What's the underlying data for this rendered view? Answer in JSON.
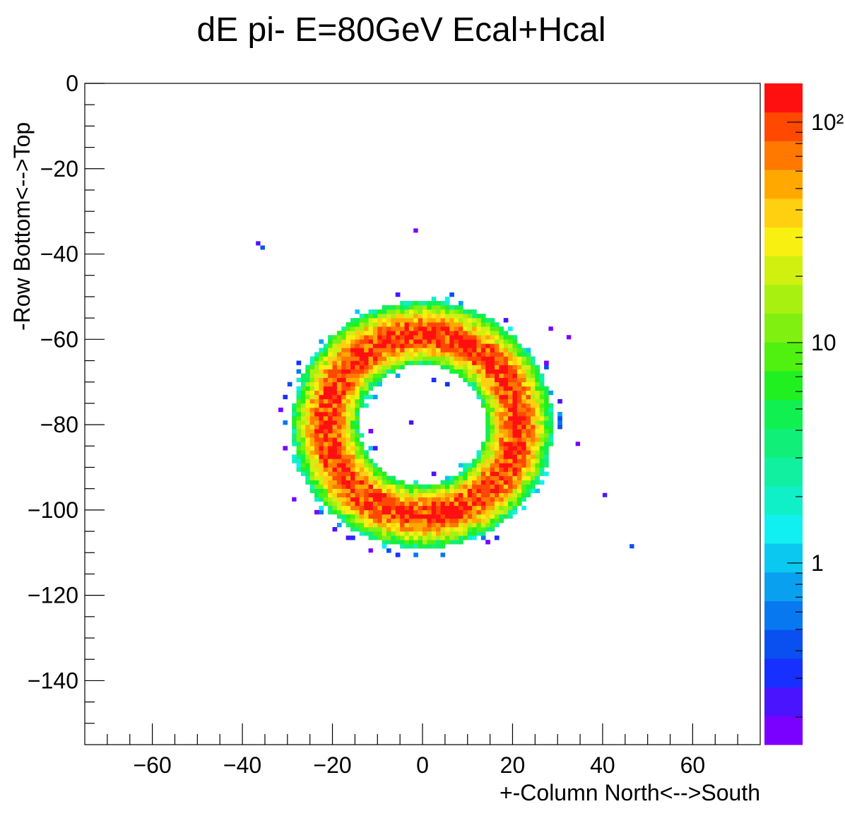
{
  "chart_data": {
    "type": "heatmap",
    "title": "dE pi- E=80GeV Ecal+Hcal",
    "xlabel": "+-Column North<-->South",
    "ylabel": "-Row Bottom<-->Top",
    "xlim": [
      -75,
      75
    ],
    "ylim": [
      -155,
      0
    ],
    "x_ticks": [
      -60,
      -40,
      -20,
      0,
      20,
      40,
      60
    ],
    "y_ticks": [
      0,
      -20,
      -40,
      -60,
      -80,
      -100,
      -120,
      -140
    ],
    "x_tick_labels": [
      "−60",
      "−40",
      "−20",
      "0",
      "20",
      "40",
      "60"
    ],
    "y_tick_labels": [
      "0",
      "−20",
      "−40",
      "−60",
      "−80",
      "−100",
      "−120",
      "−140"
    ],
    "colorbar": {
      "scale": "log",
      "min": 0.15,
      "max": 150,
      "tick_labels": [
        "1",
        "10",
        "10²"
      ],
      "tick_values": [
        1,
        10,
        100
      ],
      "palette": [
        "#7a00ff",
        "#4a14ff",
        "#1830ff",
        "#0a50f0",
        "#0878f0",
        "#0aa0f0",
        "#0ac8f0",
        "#10f0f0",
        "#10f0c8",
        "#10f0a0",
        "#10f078",
        "#10f050",
        "#20f020",
        "#50f010",
        "#80f010",
        "#a8f010",
        "#d0f010",
        "#f8f010",
        "#ffd010",
        "#ffa800",
        "#ff7800",
        "#ff4800",
        "#ff1010"
      ]
    },
    "ring": {
      "center_x": 0,
      "center_y": -80,
      "peak_radius": 21,
      "inner_edge_radius": 14,
      "outer_edge_radius": 29,
      "peak_value": 120
    },
    "isolated_points": [
      {
        "x": -2,
        "y": -35,
        "value": 0.2
      },
      {
        "x": -37,
        "y": -38,
        "value": 0.25
      },
      {
        "x": -36,
        "y": -39,
        "value": 0.4
      },
      {
        "x": -3,
        "y": -80,
        "value": 0.25
      },
      {
        "x": 46,
        "y": -109,
        "value": 0.4
      },
      {
        "x": 40,
        "y": -97,
        "value": 0.25
      },
      {
        "x": -29,
        "y": -98,
        "value": 0.2
      },
      {
        "x": -12,
        "y": -110,
        "value": 0.2
      },
      {
        "x": 32,
        "y": -60,
        "value": 0.2
      },
      {
        "x": 34,
        "y": -85,
        "value": 0.2
      },
      {
        "x": 28,
        "y": -58,
        "value": 0.2
      }
    ]
  }
}
